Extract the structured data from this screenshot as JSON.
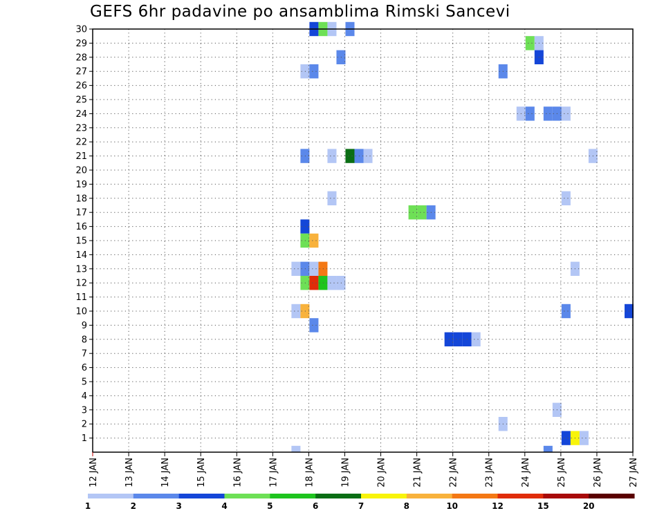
{
  "chart_data": {
    "type": "heatmap",
    "title": "GEFS 6hr padavine po ansamblima Rimski Sancevi",
    "x_tick_labels": [
      "12 JAN",
      "13 JAN",
      "14 JAN",
      "15 JAN",
      "16 JAN",
      "17 JAN",
      "18 JAN",
      "19 JAN",
      "20 JAN",
      "21 JAN",
      "22 JAN",
      "23 JAN",
      "24 JAN",
      "25 JAN",
      "26 JAN",
      "27 JAN"
    ],
    "y_tick_labels": [
      "1",
      "2",
      "3",
      "4",
      "5",
      "6",
      "7",
      "8",
      "9",
      "10",
      "11",
      "12",
      "13",
      "14",
      "15",
      "16",
      "17",
      "18",
      "19",
      "20",
      "21",
      "22",
      "23",
      "24",
      "25",
      "26",
      "27",
      "28",
      "29",
      "30"
    ],
    "x_range_days": [
      12,
      27
    ],
    "y_range": [
      0,
      30
    ],
    "grid": true,
    "legend_placement": "bottom",
    "colorbar": {
      "labels": [
        "1",
        "2",
        "3",
        "4",
        "5",
        "6",
        "7",
        "8",
        "10",
        "12",
        "15",
        "20"
      ],
      "colors": [
        "#b3c6f5",
        "#5b88ea",
        "#1446d8",
        "#6ee056",
        "#1ec41e",
        "#0a6e14",
        "#f8f40a",
        "#f8b23c",
        "#f47814",
        "#e02c0a",
        "#a80a0a",
        "#5a0000"
      ]
    },
    "cells": [
      {
        "day": 18.0,
        "member": 30,
        "color": "#1446d8"
      },
      {
        "day": 18.25,
        "member": 30,
        "color": "#6ee056"
      },
      {
        "day": 18.5,
        "member": 30,
        "color": "#b3c6f5"
      },
      {
        "day": 19.0,
        "member": 30,
        "color": "#5b88ea"
      },
      {
        "day": 24.0,
        "member": 29,
        "color": "#6ee056"
      },
      {
        "day": 24.25,
        "member": 29,
        "color": "#b3c6f5"
      },
      {
        "day": 18.75,
        "member": 28,
        "color": "#5b88ea"
      },
      {
        "day": 24.25,
        "member": 28,
        "color": "#1446d8"
      },
      {
        "day": 17.75,
        "member": 27,
        "color": "#b3c6f5"
      },
      {
        "day": 18.0,
        "member": 27,
        "color": "#5b88ea"
      },
      {
        "day": 23.25,
        "member": 27,
        "color": "#5b88ea"
      },
      {
        "day": 23.75,
        "member": 24,
        "color": "#b3c6f5"
      },
      {
        "day": 24.0,
        "member": 24,
        "color": "#5b88ea"
      },
      {
        "day": 24.5,
        "member": 24,
        "color": "#5b88ea"
      },
      {
        "day": 24.75,
        "member": 24,
        "color": "#5b88ea"
      },
      {
        "day": 25.0,
        "member": 24,
        "color": "#b3c6f5"
      },
      {
        "day": 17.75,
        "member": 21,
        "color": "#5b88ea"
      },
      {
        "day": 18.5,
        "member": 21,
        "color": "#b3c6f5"
      },
      {
        "day": 19.0,
        "member": 21,
        "color": "#0a6e14"
      },
      {
        "day": 19.25,
        "member": 21,
        "color": "#5b88ea"
      },
      {
        "day": 19.5,
        "member": 21,
        "color": "#b3c6f5"
      },
      {
        "day": 25.75,
        "member": 21,
        "color": "#b3c6f5"
      },
      {
        "day": 18.5,
        "member": 18,
        "color": "#b3c6f5"
      },
      {
        "day": 25.0,
        "member": 18,
        "color": "#b3c6f5"
      },
      {
        "day": 20.75,
        "member": 17,
        "color": "#6ee056"
      },
      {
        "day": 21.0,
        "member": 17,
        "color": "#6ee056"
      },
      {
        "day": 21.25,
        "member": 17,
        "color": "#5b88ea"
      },
      {
        "day": 17.75,
        "member": 16,
        "color": "#1446d8"
      },
      {
        "day": 17.75,
        "member": 15,
        "color": "#6ee056"
      },
      {
        "day": 18.0,
        "member": 15,
        "color": "#f8b23c"
      },
      {
        "day": 17.5,
        "member": 13,
        "color": "#b3c6f5"
      },
      {
        "day": 17.75,
        "member": 13,
        "color": "#5b88ea"
      },
      {
        "day": 18.0,
        "member": 13,
        "color": "#b3c6f5"
      },
      {
        "day": 18.25,
        "member": 13,
        "color": "#f47814"
      },
      {
        "day": 25.25,
        "member": 13,
        "color": "#b3c6f5"
      },
      {
        "day": 17.75,
        "member": 12,
        "color": "#6ee056"
      },
      {
        "day": 18.0,
        "member": 12,
        "color": "#e02c0a"
      },
      {
        "day": 18.25,
        "member": 12,
        "color": "#1ec41e"
      },
      {
        "day": 18.5,
        "member": 12,
        "color": "#b3c6f5"
      },
      {
        "day": 18.75,
        "member": 12,
        "color": "#b3c6f5"
      },
      {
        "day": 17.5,
        "member": 10,
        "color": "#b3c6f5"
      },
      {
        "day": 17.75,
        "member": 10,
        "color": "#f8b23c"
      },
      {
        "day": 25.0,
        "member": 10,
        "color": "#5b88ea"
      },
      {
        "day": 26.75,
        "member": 10,
        "color": "#1446d8"
      },
      {
        "day": 18.0,
        "member": 9,
        "color": "#5b88ea"
      },
      {
        "day": 21.75,
        "member": 8,
        "color": "#1446d8"
      },
      {
        "day": 22.0,
        "member": 8,
        "color": "#1446d8"
      },
      {
        "day": 22.25,
        "member": 8,
        "color": "#1446d8"
      },
      {
        "day": 22.5,
        "member": 8,
        "color": "#b3c6f5"
      },
      {
        "day": 24.75,
        "member": 3,
        "color": "#b3c6f5"
      },
      {
        "day": 23.25,
        "member": 2,
        "color": "#b3c6f5"
      },
      {
        "day": 25.0,
        "member": 1,
        "color": "#1446d8"
      },
      {
        "day": 25.25,
        "member": 1,
        "color": "#f8f40a"
      },
      {
        "day": 25.5,
        "member": 1,
        "color": "#b3c6f5"
      },
      {
        "day": 17.5,
        "member": 0,
        "color": "#b3c6f5"
      },
      {
        "day": 24.5,
        "member": 0,
        "color": "#5b88ea"
      }
    ]
  }
}
